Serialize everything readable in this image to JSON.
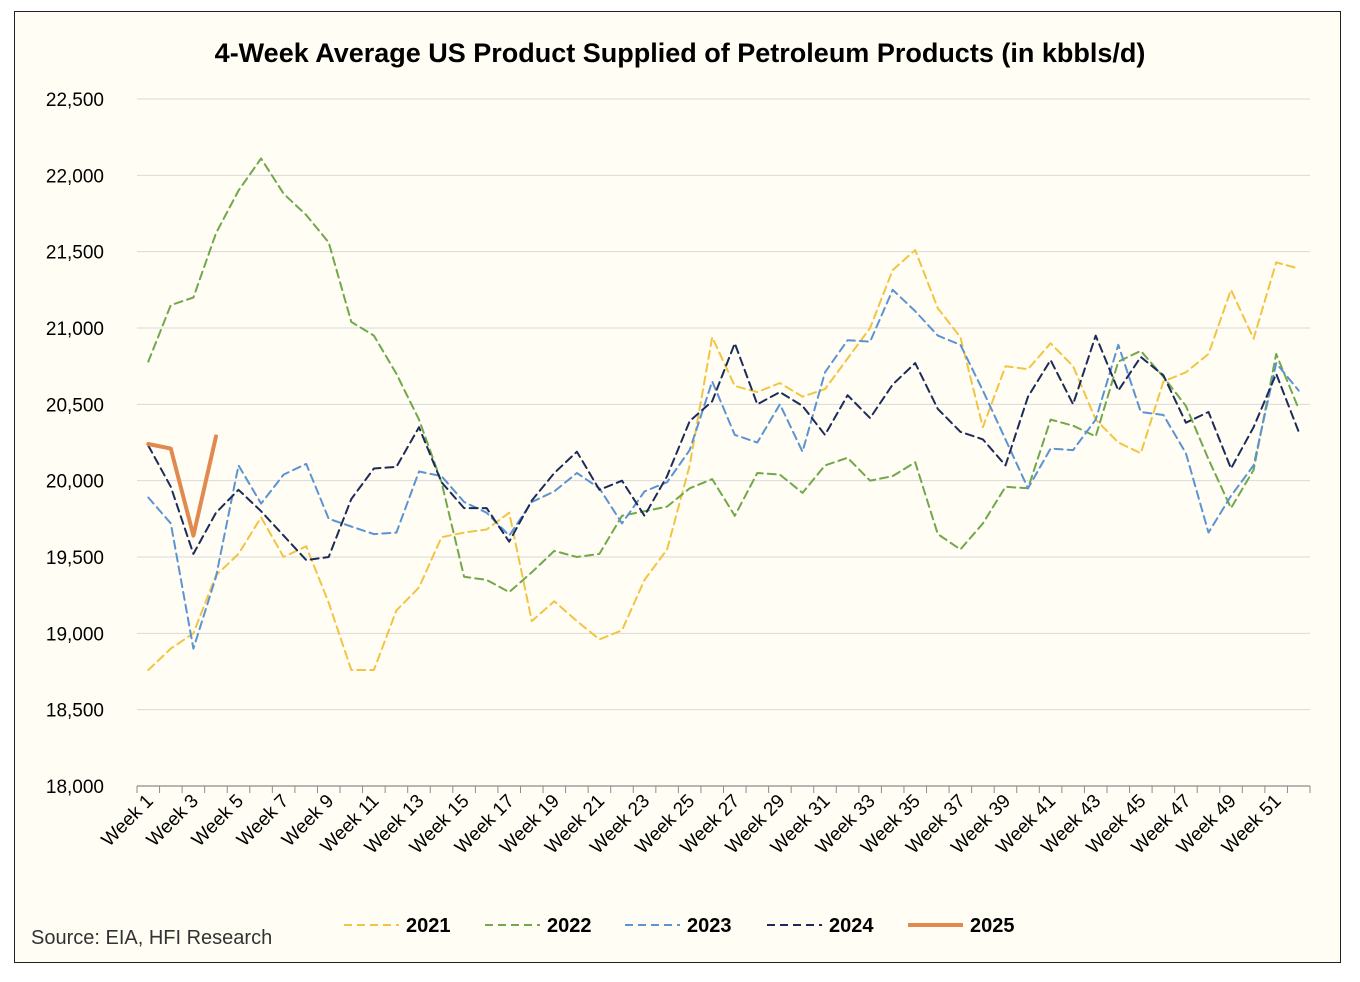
{
  "chart_data": {
    "type": "line",
    "title": "4-Week Average US Product Supplied of Petroleum Products (in kbbls/d)",
    "source": "Source: EIA, HFI Research",
    "ylim": [
      18000,
      22500
    ],
    "y_ticks": [
      "18,000",
      "18,500",
      "19,000",
      "19,500",
      "20,000",
      "20,500",
      "21,000",
      "21,500",
      "22,000",
      "22,500"
    ],
    "y_tick_values": [
      18000,
      18500,
      19000,
      19500,
      20000,
      20500,
      21000,
      21500,
      22000,
      22500
    ],
    "x_tick_labels": [
      "Week 1",
      "Week 3",
      "Week 5",
      "Week 7",
      "Week 9",
      "Week 11",
      "Week 13",
      "Week 15",
      "Week 17",
      "Week 19",
      "Week 21",
      "Week 23",
      "Week 25",
      "Week 27",
      "Week 29",
      "Week 31",
      "Week 33",
      "Week 35",
      "Week 37",
      "Week 39",
      "Week 41",
      "Week 43",
      "Week 45",
      "Week 47",
      "Week 49",
      "Week 51"
    ],
    "x_tick_weeks": [
      1,
      3,
      5,
      7,
      9,
      11,
      13,
      15,
      17,
      19,
      21,
      23,
      25,
      27,
      29,
      31,
      33,
      35,
      37,
      39,
      41,
      43,
      45,
      47,
      49,
      51
    ],
    "num_weeks": 52,
    "grid": "horizontal",
    "legend_position": "bottom",
    "series": [
      {
        "name": "2021",
        "color": "#f2c444",
        "dash": "8,5",
        "width": 2,
        "values": [
          18760,
          18900,
          19000,
          19380,
          19520,
          19760,
          19500,
          19570,
          19200,
          18760,
          18760,
          19150,
          19300,
          19630,
          19660,
          19680,
          19790,
          19080,
          19210,
          19080,
          18960,
          19020,
          19350,
          19550,
          20100,
          20940,
          20620,
          20580,
          20640,
          20550,
          20600,
          20800,
          21000,
          21380,
          21510,
          21130,
          20940,
          20350,
          20750,
          20730,
          20900,
          20750,
          20400,
          20250,
          20180,
          20650,
          20710,
          20830,
          21250,
          20930,
          21430,
          21390
        ]
      },
      {
        "name": "2022",
        "color": "#70a84a",
        "dash": "8,5",
        "width": 2,
        "values": [
          20780,
          21150,
          21200,
          21620,
          21900,
          22110,
          21880,
          21740,
          21560,
          21040,
          20950,
          20700,
          20400,
          19990,
          19370,
          19350,
          19270,
          19400,
          19540,
          19500,
          19520,
          19770,
          19800,
          19830,
          19950,
          20010,
          19770,
          20050,
          20040,
          19920,
          20100,
          20150,
          20000,
          20030,
          20120,
          19650,
          19550,
          19720,
          19960,
          19950,
          20400,
          20360,
          20290,
          20780,
          20850,
          20680,
          20490,
          20140,
          19820,
          20070,
          20830,
          20470
        ]
      },
      {
        "name": "2023",
        "color": "#5b93d3",
        "dash": "8,5",
        "width": 2,
        "values": [
          19890,
          19720,
          18900,
          19370,
          20100,
          19850,
          20040,
          20110,
          19750,
          19700,
          19650,
          19660,
          20060,
          20030,
          19860,
          19790,
          19640,
          19860,
          19930,
          20050,
          19950,
          19720,
          19930,
          19990,
          20200,
          20650,
          20300,
          20250,
          20500,
          20190,
          20710,
          20920,
          20910,
          21250,
          21110,
          20950,
          20890,
          20590,
          20270,
          19950,
          20210,
          20200,
          20400,
          20890,
          20450,
          20430,
          20180,
          19660,
          19900,
          20100,
          20770,
          20590
        ]
      },
      {
        "name": "2024",
        "color": "#1c2b59",
        "dash": "8,5",
        "width": 2,
        "values": [
          20230,
          19960,
          19520,
          19790,
          19940,
          19800,
          19640,
          19480,
          19500,
          19880,
          20080,
          20090,
          20350,
          19990,
          19820,
          19820,
          19600,
          19870,
          20050,
          20190,
          19940,
          20000,
          19770,
          20030,
          20390,
          20520,
          20900,
          20500,
          20580,
          20490,
          20300,
          20560,
          20410,
          20630,
          20770,
          20470,
          20320,
          20270,
          20100,
          20550,
          20790,
          20500,
          20950,
          20590,
          20810,
          20690,
          20380,
          20450,
          20080,
          20350,
          20700,
          20320
        ]
      },
      {
        "name": "2025",
        "color": "#e08a4f",
        "dash": "",
        "width": 4,
        "values": [
          20240,
          20210,
          19640,
          20290
        ]
      }
    ]
  }
}
